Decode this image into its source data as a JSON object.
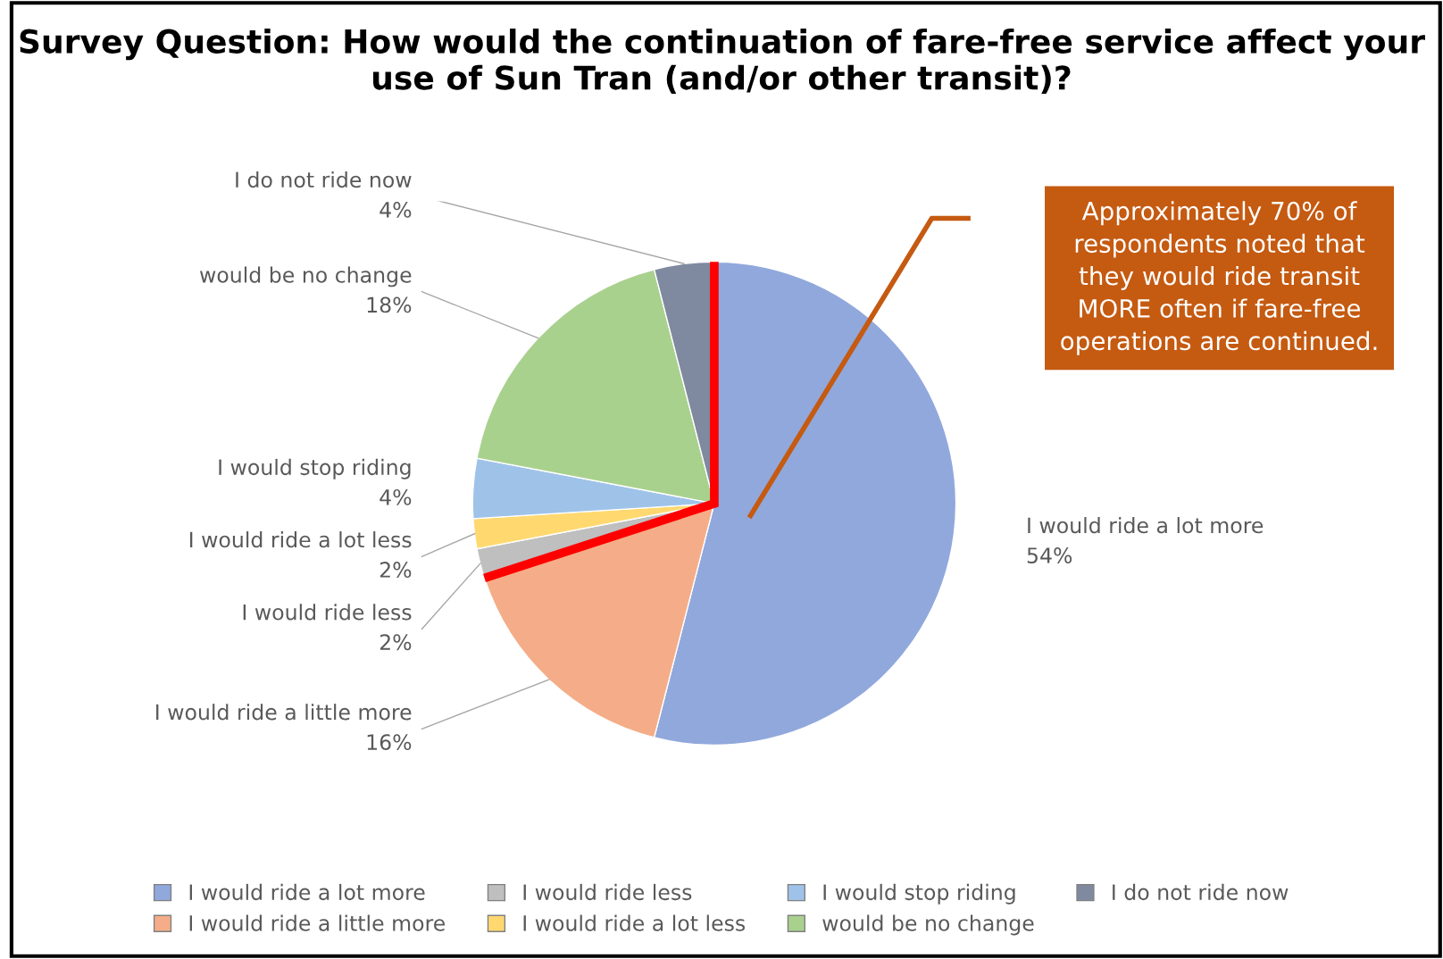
{
  "chart_data": {
    "type": "pie",
    "title": "Survey Question: How would the continuation of fare-free service affect your use of Sun Tran (and/or other transit)?",
    "categories": [
      "I would ride a lot more",
      "I would ride a little more",
      "I would ride less",
      "I would ride a lot less",
      "I would stop riding",
      "would be no change",
      "I do not ride now"
    ],
    "values": [
      54,
      16,
      2,
      2,
      4,
      18,
      4
    ],
    "value_labels": [
      "54%",
      "16%",
      "2%",
      "2%",
      "4%",
      "18%",
      "4%"
    ],
    "colors": [
      "#91a8dc",
      "#f4ad88",
      "#bfbfbf",
      "#ffd970",
      "#9fc3e8",
      "#a9d18e",
      "#7f899f"
    ],
    "legend": "bottom",
    "annotations": [
      "Approximately 70% of\nrespondents noted that\nthey would ride transit\nMORE often if fare-free\noperations are continued."
    ]
  }
}
